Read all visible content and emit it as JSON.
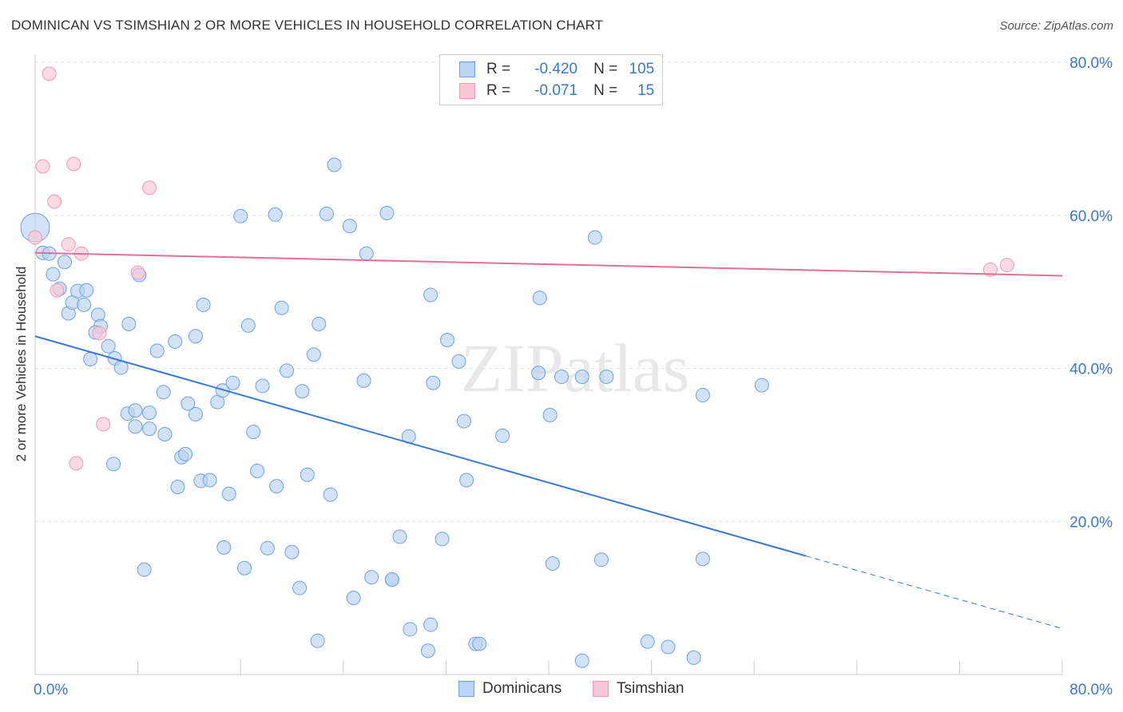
{
  "title": "DOMINICAN VS TSIMSHIAN 2 OR MORE VEHICLES IN HOUSEHOLD CORRELATION CHART",
  "source": "Source: ZipAtlas.com",
  "watermark": "ZIPatlas",
  "legend_stats": [
    {
      "r_label": "R =",
      "r_value": "-0.420",
      "n_label": "N =",
      "n_value": "105"
    },
    {
      "r_label": "R =",
      "r_value": "-0.071",
      "n_label": "N =",
      "n_value": "15"
    }
  ],
  "bottom_legend": [
    "Dominicans",
    "Tsimshian"
  ],
  "colors": {
    "dominican_fill": "#b8d3f3",
    "dominican_stroke": "#6fa0e0",
    "dominican_line": "#3a78d0",
    "tsimshian_fill": "#f9c6d5",
    "tsimshian_stroke": "#ee9ab5",
    "tsimshian_line": "#e07098",
    "axis_label": "#3a78c8",
    "grid": "#e3e3e3"
  },
  "chart_data": {
    "type": "scatter",
    "title": "DOMINICAN VS TSIMSHIAN 2 OR MORE VEHICLES IN HOUSEHOLD CORRELATION CHART",
    "xlabel": "",
    "ylabel": "2 or more Vehicles in Household",
    "xlim": [
      0,
      80
    ],
    "ylim": [
      0,
      80
    ],
    "x_tick_labels": [
      "0.0%",
      "80.0%"
    ],
    "y_ticks": [
      20,
      40,
      60,
      80
    ],
    "y_tick_labels": [
      "20.0%",
      "40.0%",
      "60.0%",
      "80.0%"
    ],
    "grid": "horizontal dashed",
    "series": [
      {
        "name": "Dominicans",
        "points": [
          [
            0.0,
            58.4
          ],
          [
            0.6,
            55.1
          ],
          [
            1.1,
            55.0
          ],
          [
            1.4,
            52.3
          ],
          [
            1.9,
            50.4
          ],
          [
            2.3,
            53.9
          ],
          [
            2.6,
            47.2
          ],
          [
            2.9,
            48.6
          ],
          [
            3.3,
            50.1
          ],
          [
            3.8,
            48.3
          ],
          [
            4.0,
            50.2
          ],
          [
            4.9,
            47.0
          ],
          [
            5.1,
            45.5
          ],
          [
            4.7,
            44.7
          ],
          [
            5.7,
            42.9
          ],
          [
            6.2,
            41.3
          ],
          [
            4.3,
            41.2
          ],
          [
            6.7,
            40.1
          ],
          [
            7.3,
            45.8
          ],
          [
            8.1,
            52.2
          ],
          [
            9.5,
            42.3
          ],
          [
            10.0,
            36.9
          ],
          [
            10.9,
            43.5
          ],
          [
            11.9,
            35.4
          ],
          [
            12.5,
            44.2
          ],
          [
            13.1,
            48.3
          ],
          [
            14.2,
            35.6
          ],
          [
            14.6,
            37.1
          ],
          [
            15.4,
            38.1
          ],
          [
            16.0,
            59.9
          ],
          [
            16.6,
            45.6
          ],
          [
            17.7,
            37.7
          ],
          [
            18.7,
            60.1
          ],
          [
            19.2,
            47.9
          ],
          [
            19.6,
            39.7
          ],
          [
            20.8,
            37.0
          ],
          [
            21.7,
            41.8
          ],
          [
            22.1,
            45.8
          ],
          [
            22.7,
            60.2
          ],
          [
            23.3,
            66.6
          ],
          [
            24.5,
            58.6
          ],
          [
            25.6,
            38.4
          ],
          [
            25.8,
            55.0
          ],
          [
            27.4,
            60.3
          ],
          [
            29.1,
            31.1
          ],
          [
            30.8,
            49.6
          ],
          [
            31.0,
            38.1
          ],
          [
            32.1,
            43.7
          ],
          [
            33.0,
            40.9
          ],
          [
            33.4,
            33.1
          ],
          [
            33.6,
            25.4
          ],
          [
            36.4,
            31.2
          ],
          [
            39.2,
            39.4
          ],
          [
            39.3,
            49.2
          ],
          [
            40.1,
            33.9
          ],
          [
            41.0,
            38.9
          ],
          [
            42.6,
            38.9
          ],
          [
            43.6,
            57.1
          ],
          [
            44.5,
            38.9
          ],
          [
            52.0,
            36.5
          ],
          [
            56.6,
            37.8
          ],
          [
            8.9,
            34.2
          ],
          [
            7.2,
            34.1
          ],
          [
            7.8,
            34.5
          ],
          [
            7.8,
            32.4
          ],
          [
            8.9,
            32.1
          ],
          [
            10.1,
            31.4
          ],
          [
            6.1,
            27.5
          ],
          [
            11.4,
            28.4
          ],
          [
            11.7,
            28.8
          ],
          [
            12.5,
            34.0
          ],
          [
            11.1,
            24.5
          ],
          [
            12.9,
            25.3
          ],
          [
            13.6,
            25.4
          ],
          [
            15.1,
            23.6
          ],
          [
            17.0,
            31.7
          ],
          [
            17.3,
            26.6
          ],
          [
            18.8,
            24.6
          ],
          [
            21.2,
            26.1
          ],
          [
            23.0,
            23.5
          ],
          [
            14.7,
            16.6
          ],
          [
            16.3,
            13.9
          ],
          [
            18.1,
            16.5
          ],
          [
            20.0,
            16.0
          ],
          [
            20.6,
            11.3
          ],
          [
            22.0,
            4.4
          ],
          [
            24.8,
            10.0
          ],
          [
            26.2,
            12.7
          ],
          [
            27.8,
            12.4
          ],
          [
            28.4,
            18.0
          ],
          [
            29.2,
            5.9
          ],
          [
            30.6,
            3.1
          ],
          [
            30.8,
            6.5
          ],
          [
            31.7,
            17.7
          ],
          [
            34.3,
            4.0
          ],
          [
            34.6,
            4.0
          ],
          [
            40.3,
            14.5
          ],
          [
            42.6,
            1.8
          ],
          [
            44.1,
            15.0
          ],
          [
            47.7,
            4.3
          ],
          [
            49.3,
            3.6
          ],
          [
            51.3,
            2.2
          ],
          [
            52.0,
            15.1
          ],
          [
            8.5,
            13.7
          ],
          [
            27.8,
            12.4
          ]
        ],
        "trend": {
          "x0": 0,
          "y0": 44.2,
          "x1": 60,
          "y1": 15.5,
          "dashed_to_x": 80,
          "dashed_to_y": 6.0
        }
      },
      {
        "name": "Tsimshian",
        "points": [
          [
            0.0,
            57.1
          ],
          [
            0.6,
            66.4
          ],
          [
            1.1,
            78.5
          ],
          [
            1.5,
            61.8
          ],
          [
            1.7,
            50.2
          ],
          [
            2.6,
            56.2
          ],
          [
            3.0,
            66.7
          ],
          [
            3.6,
            55.0
          ],
          [
            3.2,
            27.6
          ],
          [
            5.0,
            44.6
          ],
          [
            5.3,
            32.7
          ],
          [
            8.0,
            52.5
          ],
          [
            8.9,
            63.6
          ],
          [
            74.4,
            52.9
          ],
          [
            75.7,
            53.5
          ]
        ],
        "trend": {
          "x0": 0,
          "y0": 55.1,
          "x1": 80,
          "y1": 52.1
        }
      }
    ]
  }
}
